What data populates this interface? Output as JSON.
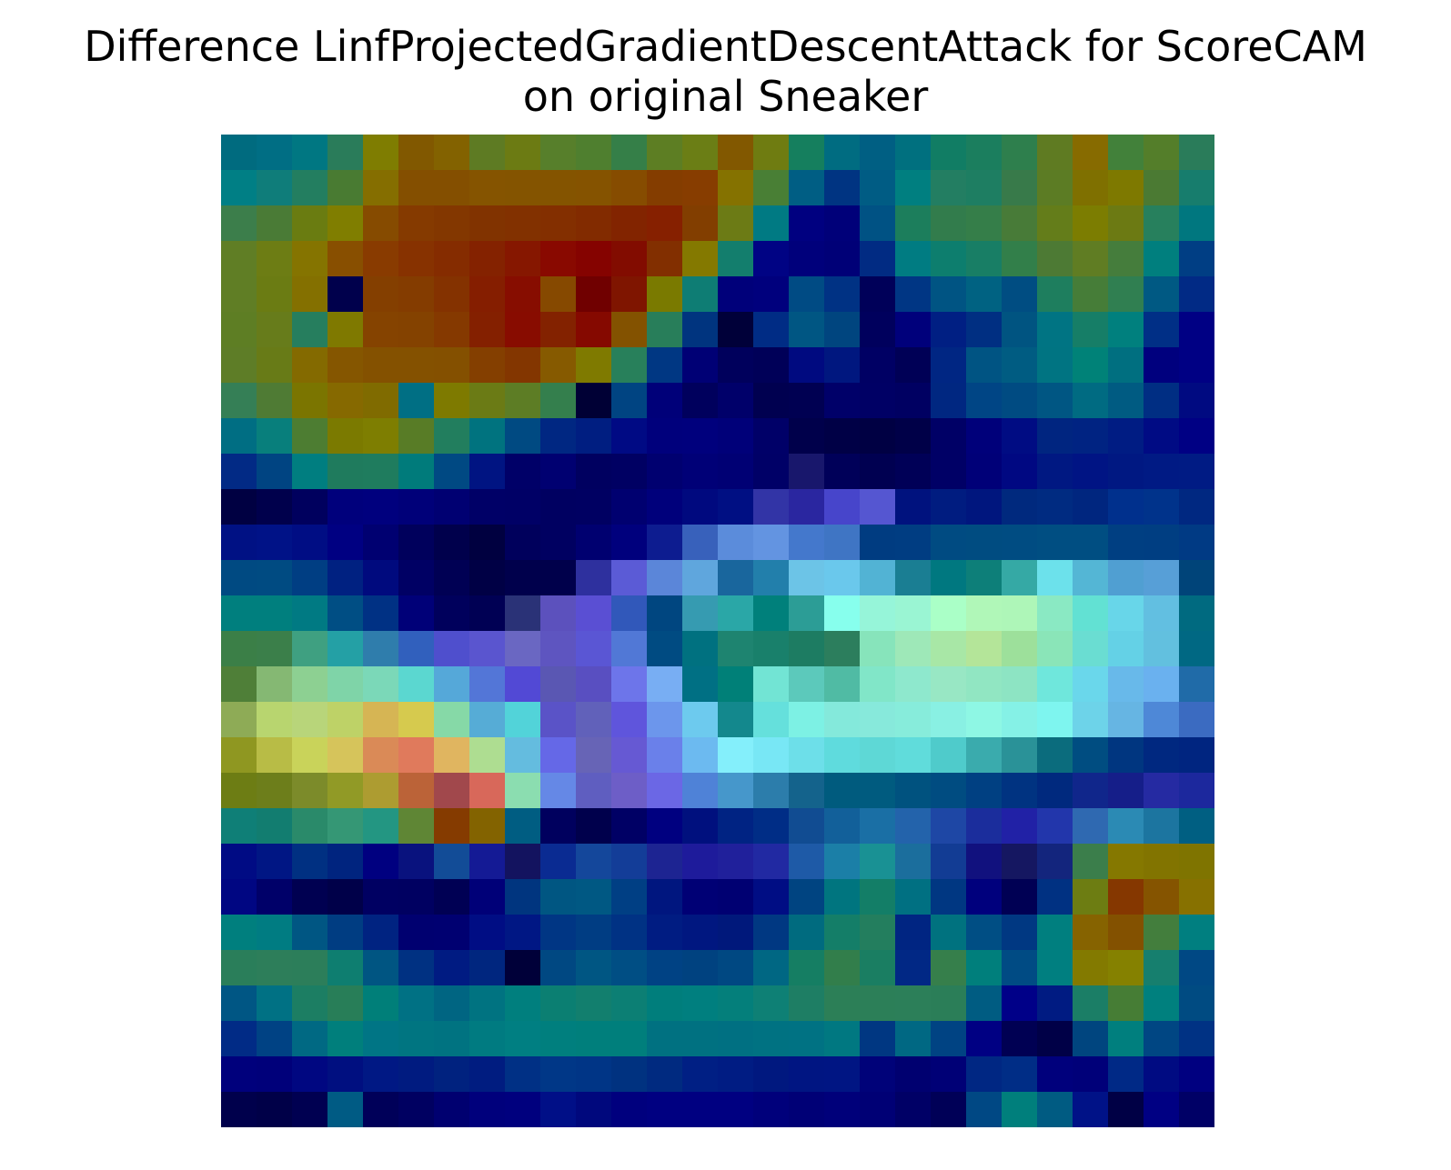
{
  "chart_data": {
    "type": "heatmap",
    "title_lines": [
      "Difference LinfProjectedGradientDescentAttack for ScoreCAM",
      "on original Sneaker"
    ],
    "axes": "off",
    "grid": false,
    "legend": "none",
    "rows": 28,
    "cols": 28,
    "colors": [
      [
        "#006b7f",
        "#006e84",
        "#007782",
        "#2a7c5a",
        "#7f7d01",
        "#815800",
        "#836200",
        "#5e7b23",
        "#6c7b13",
        "#577f2b",
        "#4f7f2f",
        "#357f48",
        "#5d7e23",
        "#6b7e15",
        "#825800",
        "#6f7c11",
        "#157f5e",
        "#006c81",
        "#005f83",
        "#00707f",
        "#117d64",
        "#1b7e5e",
        "#2e7f4d",
        "#5f7b22",
        "#876b00",
        "#42813a",
        "#547e2a",
        "#2a7c5a"
      ],
      [
        "#007f85",
        "#0f7d7a",
        "#237e60",
        "#497b32",
        "#856e00",
        "#844f00",
        "#844f00",
        "#855400",
        "#845400",
        "#845400",
        "#855300",
        "#864c00",
        "#843d00",
        "#873d00",
        "#857200",
        "#497f35",
        "#005e84",
        "#003482",
        "#005c84",
        "#007f80",
        "#237e62",
        "#1e7e62",
        "#387a4a",
        "#5c7c24",
        "#7f7000",
        "#7e7900",
        "#4b7a33",
        "#177d6d"
      ],
      [
        "#3c7e4b",
        "#4a7b36",
        "#6a7c11",
        "#807e00",
        "#864b00",
        "#853a00",
        "#833700",
        "#813300",
        "#823100",
        "#832f00",
        "#822b00",
        "#822400",
        "#862000",
        "#823e00",
        "#6c7b15",
        "#007a83",
        "#000080",
        "#000079",
        "#005284",
        "#1c7e5c",
        "#327c4c",
        "#357e49",
        "#487b38",
        "#647d1a",
        "#7c7d01",
        "#6c7a13",
        "#27805d",
        "#00777f"
      ],
      [
        "#607e25",
        "#6d7d14",
        "#857400",
        "#884f00",
        "#893b00",
        "#873200",
        "#852c00",
        "#842200",
        "#861700",
        "#890900",
        "#850300",
        "#820c00",
        "#822f00",
        "#847900",
        "#137e6d",
        "#000384",
        "#00007b",
        "#000077",
        "#012b83",
        "#007c82",
        "#0d7e6e",
        "#187e65",
        "#327f4a",
        "#4d7a34",
        "#607d23",
        "#457d3c",
        "#007f7e",
        "#003e84"
      ],
      [
        "#607e25",
        "#6b7c13",
        "#847000",
        "#00004c",
        "#843f00",
        "#843c00",
        "#843200",
        "#851e00",
        "#870d00",
        "#864900",
        "#700000",
        "#7f1500",
        "#7a7a00",
        "#0e7d74",
        "#00007a",
        "#00007d",
        "#004b84",
        "#003284",
        "#000059",
        "#003684",
        "#005483",
        "#006282",
        "#004d82",
        "#1e7e5e",
        "#467d38",
        "#307f51",
        "#005983",
        "#012a85"
      ],
      [
        "#5e7e24",
        "#677c1b",
        "#267e5e",
        "#7f7900",
        "#854300",
        "#844200",
        "#853900",
        "#842000",
        "#880c00",
        "#832200",
        "#850900",
        "#835200",
        "#287e5a",
        "#00347f",
        "#000039",
        "#002c85",
        "#005683",
        "#00457f",
        "#00005d",
        "#00007b",
        "#001f83",
        "#002f82",
        "#005481",
        "#007483",
        "#167e67",
        "#00807e",
        "#002f86",
        "#000084"
      ],
      [
        "#5e7d27",
        "#687b17",
        "#846a00",
        "#855600",
        "#845100",
        "#845100",
        "#845000",
        "#843f00",
        "#833600",
        "#865a00",
        "#7f7a00",
        "#28805b",
        "#003783",
        "#000075",
        "#00005c",
        "#000058",
        "#000a80",
        "#00177f",
        "#000064",
        "#000056",
        "#002683",
        "#005483",
        "#005c82",
        "#007482",
        "#008278",
        "#006f80",
        "#00007e",
        "#000084"
      ],
      [
        "#357f56",
        "#4f7b34",
        "#7b7500",
        "#866900",
        "#806b00",
        "#006f84",
        "#7e7a00",
        "#6b7b15",
        "#5d7d25",
        "#347f4d",
        "#000035",
        "#004482",
        "#000079",
        "#00005d",
        "#00006a",
        "#000050",
        "#000052",
        "#000069",
        "#000065",
        "#000062",
        "#002781",
        "#004585",
        "#004b82",
        "#005683",
        "#006b82",
        "#005b82",
        "#002e83",
        "#000a81"
      ],
      [
        "#006e83",
        "#087f7c",
        "#4d7d32",
        "#7b7a00",
        "#7e7e01",
        "#587c26",
        "#227e5e",
        "#00737f",
        "#004a82",
        "#002782",
        "#001e81",
        "#000a84",
        "#00007c",
        "#00007d",
        "#000079",
        "#000068",
        "#00004b",
        "#000046",
        "#000043",
        "#000048",
        "#000066",
        "#00007a",
        "#000c83",
        "#002580",
        "#002382",
        "#001c83",
        "#000b84",
        "#000084"
      ],
      [
        "#022a85",
        "#004482",
        "#007e80",
        "#1f7b5d",
        "#1f7c5e",
        "#007b7b",
        "#004983",
        "#001482",
        "#000068",
        "#000071",
        "#000060",
        "#000063",
        "#000070",
        "#000077",
        "#000074",
        "#000067",
        "#18176c",
        "#000059",
        "#000051",
        "#000057",
        "#000066",
        "#000078",
        "#000882",
        "#001882",
        "#001484",
        "#001882",
        "#001a84",
        "#001b84"
      ],
      [
        "#000042",
        "#00004c",
        "#00005e",
        "#00007c",
        "#00007e",
        "#000079",
        "#000072",
        "#000067",
        "#000066",
        "#000061",
        "#000062",
        "#000070",
        "#00007b",
        "#00097f",
        "#000f83",
        "#3234a6",
        "#2a26a0",
        "#4745cb",
        "#5556d1",
        "#00127e",
        "#001c80",
        "#00167e",
        "#00297e",
        "#002b81",
        "#00267f",
        "#00308d",
        "#00338b",
        "#002881"
      ],
      [
        "#001184",
        "#001287",
        "#000d84",
        "#000082",
        "#000071",
        "#00005c",
        "#00004c",
        "#000040",
        "#00005c",
        "#000061",
        "#000070",
        "#00007d",
        "#0d1c90",
        "#3861bb",
        "#5b8cdb",
        "#6394e1",
        "#4478cc",
        "#3f75c4",
        "#003c81",
        "#003d82",
        "#004b82",
        "#004c81",
        "#004c82",
        "#004e82",
        "#004e82",
        "#003f82",
        "#003e82",
        "#003a84"
      ],
      [
        "#004a82",
        "#004b82",
        "#003e83",
        "#002181",
        "#000a7e",
        "#000064",
        "#000054",
        "#000045",
        "#00004c",
        "#00004b",
        "#2e309e",
        "#5b5bd6",
        "#5b86d9",
        "#5fa6dd",
        "#19669d",
        "#227fab",
        "#6cc4e7",
        "#6ac8ec",
        "#52b3d4",
        "#1a7e93",
        "#007880",
        "#0d7f79",
        "#35a9a5",
        "#6ce1eb",
        "#54b6d5",
        "#509fd2",
        "#579fd7",
        "#004479"
      ],
      [
        "#007f7e",
        "#007f7e",
        "#007a83",
        "#004e84",
        "#003184",
        "#000078",
        "#00005c",
        "#000054",
        "#2a3277",
        "#5c51bd",
        "#5a4fd3",
        "#3158ba",
        "#004680",
        "#369bb1",
        "#2aa7a7",
        "#00807b",
        "#2c9d96",
        "#87ffed",
        "#96f5d9",
        "#9af5d3",
        "#aaffc7",
        "#b0f7b8",
        "#aef6b8",
        "#8ae9c3",
        "#62e1d3",
        "#68d6e9",
        "#62bfe1",
        "#006a80"
      ],
      [
        "#3b7f47",
        "#3b7f4a",
        "#3fa081",
        "#24a0a5",
        "#2f7dac",
        "#3160bd",
        "#4f4fcd",
        "#5a55cf",
        "#6a67c2",
        "#5e55c0",
        "#5a56d4",
        "#5178d6",
        "#004b82",
        "#007180",
        "#1e8470",
        "#19806b",
        "#1d7c62",
        "#2c7e5d",
        "#87e4bb",
        "#9ee8b8",
        "#a8e7a6",
        "#b4e599",
        "#9de09b",
        "#8ae5b8",
        "#6addd2",
        "#64d1e6",
        "#62c0df",
        "#006883"
      ],
      [
        "#4f7f38",
        "#85b873",
        "#8dd092",
        "#7fd4a8",
        "#7bd8b8",
        "#5bd7d0",
        "#55a8d9",
        "#5376d7",
        "#5249d5",
        "#5a57b3",
        "#594fc1",
        "#6d75ea",
        "#78aef3",
        "#007084",
        "#008078",
        "#72e4d4",
        "#5cc9bb",
        "#50bba4",
        "#81e6c8",
        "#8ee8cd",
        "#98e7c4",
        "#91e6c2",
        "#8de4c3",
        "#6fe7dc",
        "#6ad7eb",
        "#68b9ea",
        "#6ab1ef",
        "#206ba8"
      ],
      [
        "#8eab56",
        "#b8d56f",
        "#b8d57a",
        "#bed267",
        "#d6b554",
        "#d6ca4e",
        "#86d9a7",
        "#56acd6",
        "#52d3d9",
        "#5a53c7",
        "#6161ba",
        "#5f55dc",
        "#6c96ec",
        "#6dcaee",
        "#13888d",
        "#65e0dc",
        "#7df1e4",
        "#84e9db",
        "#87e9db",
        "#87ecdb",
        "#89f0e3",
        "#8ef7e4",
        "#85f1e6",
        "#7ef5ef",
        "#6dd3e9",
        "#66b5e3",
        "#4e88d7",
        "#3b6bc1"
      ],
      [
        "#8f9721",
        "#b8bc46",
        "#c9d35a",
        "#d6c45b",
        "#da8a57",
        "#e07a5c",
        "#e0b560",
        "#aedd91",
        "#64bcdf",
        "#6568e7",
        "#6764b6",
        "#6659d3",
        "#6a80ea",
        "#6cbaf0",
        "#84effb",
        "#78e7f5",
        "#6ddfe9",
        "#5fdbdd",
        "#5ed8d6",
        "#60dcdb",
        "#4fcbcb",
        "#3aabad",
        "#2a9298",
        "#0b6c7d",
        "#004d81",
        "#003680",
        "#002880",
        "#002580"
      ],
      [
        "#6d7d14",
        "#6d7e1b",
        "#7c8b2a",
        "#919a26",
        "#ad9c31",
        "#bb6338",
        "#a1484c",
        "#d8685a",
        "#8bddb0",
        "#6588e6",
        "#5f5ec0",
        "#6d5ec7",
        "#6b67e5",
        "#4f82d7",
        "#4697cb",
        "#2c7dab",
        "#14638c",
        "#005b7e",
        "#005b7f",
        "#00527f",
        "#004c81",
        "#004082",
        "#003381",
        "#00297e",
        "#10268b",
        "#151e89",
        "#252aa2",
        "#1c289d"
      ],
      [
        "#0f7f77",
        "#127d70",
        "#2a8a6a",
        "#359775",
        "#239682",
        "#5f8635",
        "#853b00",
        "#836300",
        "#005d82",
        "#00005e",
        "#00004c",
        "#000065",
        "#000080",
        "#00107e",
        "#002383",
        "#002d86",
        "#114c92",
        "#12609a",
        "#1a6fa5",
        "#2363ab",
        "#1e47a5",
        "#1b2d9c",
        "#2121a6",
        "#2236ab",
        "#2f69b1",
        "#2b8ab4",
        "#1c75a0",
        "#005f82"
      ],
      [
        "#000b84",
        "#001684",
        "#003082",
        "#00247f",
        "#000080",
        "#09127e",
        "#124c97",
        "#141a95",
        "#13135f",
        "#0a2b92",
        "#14479b",
        "#133d98",
        "#1d2492",
        "#1e1b9b",
        "#20209b",
        "#2129a2",
        "#1e5aa7",
        "#1b7fa7",
        "#199194",
        "#1b6e9d",
        "#123c94",
        "#11117e",
        "#151761",
        "#13257d",
        "#3b7e4b",
        "#857800",
        "#827400",
        "#7f7400"
      ],
      [
        "#000682",
        "#000069",
        "#000051",
        "#000049",
        "#000062",
        "#000061",
        "#000054",
        "#000078",
        "#00357f",
        "#005682",
        "#005883",
        "#003f84",
        "#00167f",
        "#000075",
        "#000072",
        "#000d84",
        "#004481",
        "#00757f",
        "#137e67",
        "#007082",
        "#003782",
        "#00007d",
        "#000054",
        "#003182",
        "#6d7d12",
        "#853700",
        "#855400",
        "#877100"
      ],
      [
        "#007f7e",
        "#007c82",
        "#005683",
        "#003d82",
        "#002381",
        "#000070",
        "#000071",
        "#000d84",
        "#001784",
        "#003684",
        "#003d83",
        "#003284",
        "#001c82",
        "#001780",
        "#00187b",
        "#003882",
        "#006b7f",
        "#147e68",
        "#237e5e",
        "#002582",
        "#00727f",
        "#004e84",
        "#003882",
        "#007f7f",
        "#866300",
        "#835100",
        "#437e3d",
        "#007f80"
      ],
      [
        "#2a7e5a",
        "#2d7e5a",
        "#2c7e5a",
        "#0e7e70",
        "#005582",
        "#003182",
        "#001b82",
        "#00267f",
        "#000039",
        "#004882",
        "#005683",
        "#004e84",
        "#004284",
        "#004280",
        "#004882",
        "#006783",
        "#157e63",
        "#327e4b",
        "#1a7e62",
        "#012885",
        "#367f4b",
        "#007f7c",
        "#004b84",
        "#007f80",
        "#837a00",
        "#858100",
        "#167f6e",
        "#004884"
      ],
      [
        "#005684",
        "#007184",
        "#1c7e63",
        "#287e58",
        "#007f79",
        "#007184",
        "#006582",
        "#007381",
        "#007f7e",
        "#0b7f72",
        "#127f6e",
        "#0c7f74",
        "#007e7c",
        "#007f7f",
        "#047f7b",
        "#0e8075",
        "#1e7e64",
        "#2c7f57",
        "#2c7f58",
        "#2c7f59",
        "#2b7e58",
        "#005c82",
        "#000088",
        "#001b82",
        "#1b7e66",
        "#467d35",
        "#00807e",
        "#004b82"
      ],
      [
        "#012b86",
        "#004284",
        "#006983",
        "#007f7c",
        "#007585",
        "#007581",
        "#007381",
        "#007b81",
        "#007f82",
        "#007f7e",
        "#007f7c",
        "#007f7c",
        "#007181",
        "#007181",
        "#007082",
        "#007282",
        "#007283",
        "#007881",
        "#003782",
        "#006883",
        "#004383",
        "#000083",
        "#000053",
        "#000047",
        "#00457f",
        "#007f7e",
        "#004683",
        "#003284"
      ],
      [
        "#00007c",
        "#00007a",
        "#000781",
        "#000f80",
        "#001884",
        "#001b80",
        "#00227f",
        "#001c80",
        "#003085",
        "#003787",
        "#003586",
        "#003280",
        "#002a80",
        "#001f84",
        "#001c83",
        "#00187f",
        "#001582",
        "#001583",
        "#000279",
        "#000070",
        "#000076",
        "#002783",
        "#002d86",
        "#00007c",
        "#000079",
        "#002986",
        "#000b82",
        "#000080"
      ],
      [
        "#00004c",
        "#000048",
        "#000051",
        "#005b84",
        "#000059",
        "#000061",
        "#000070",
        "#00007c",
        "#00007e",
        "#000f87",
        "#00087d",
        "#00007e",
        "#000081",
        "#000081",
        "#000081",
        "#00007b",
        "#000076",
        "#00007a",
        "#000075",
        "#000066",
        "#000057",
        "#004884",
        "#007f7c",
        "#005b82",
        "#001287",
        "#000045",
        "#000083",
        "#000066"
      ]
    ]
  }
}
